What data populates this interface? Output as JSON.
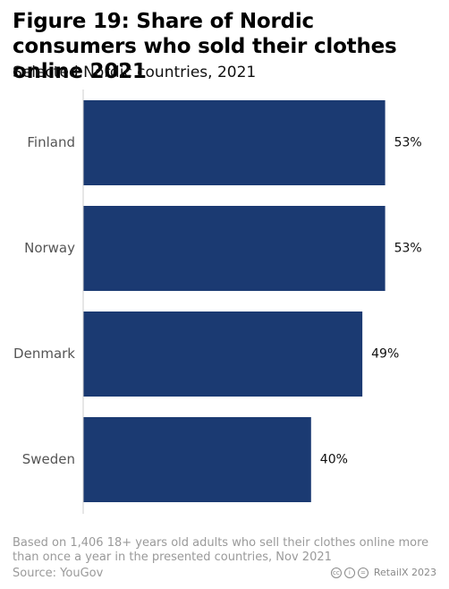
{
  "title": "Figure 19: Share of Nordic consumers who sold their clothes online 2021",
  "subtitle": "Selected Nordic countries, 2021",
  "footnote": "Based on 1,406 18+ years old adults who sell their clothes online more than once a year in the presented countries, Nov 2021",
  "source": "Source: YouGov",
  "credit": {
    "icons": [
      "cc-icon",
      "by-icon",
      "nd-icon"
    ],
    "icon_glyphs": [
      "cc",
      "i",
      "="
    ],
    "text": "RetailX 2023"
  },
  "colors": {
    "bar": "#1b3a72",
    "axis": "#cccccc",
    "label": "#555555",
    "value": "#111111"
  },
  "chart_data": {
    "type": "bar",
    "orientation": "horizontal",
    "categories": [
      "Finland",
      "Norway",
      "Denmark",
      "Sweden"
    ],
    "values": [
      53,
      53,
      49,
      40
    ],
    "value_labels": [
      "53%",
      "53%",
      "49%",
      "40%"
    ],
    "unit": "%",
    "xlim": [
      0,
      60
    ],
    "grid": false,
    "legend": "none"
  }
}
